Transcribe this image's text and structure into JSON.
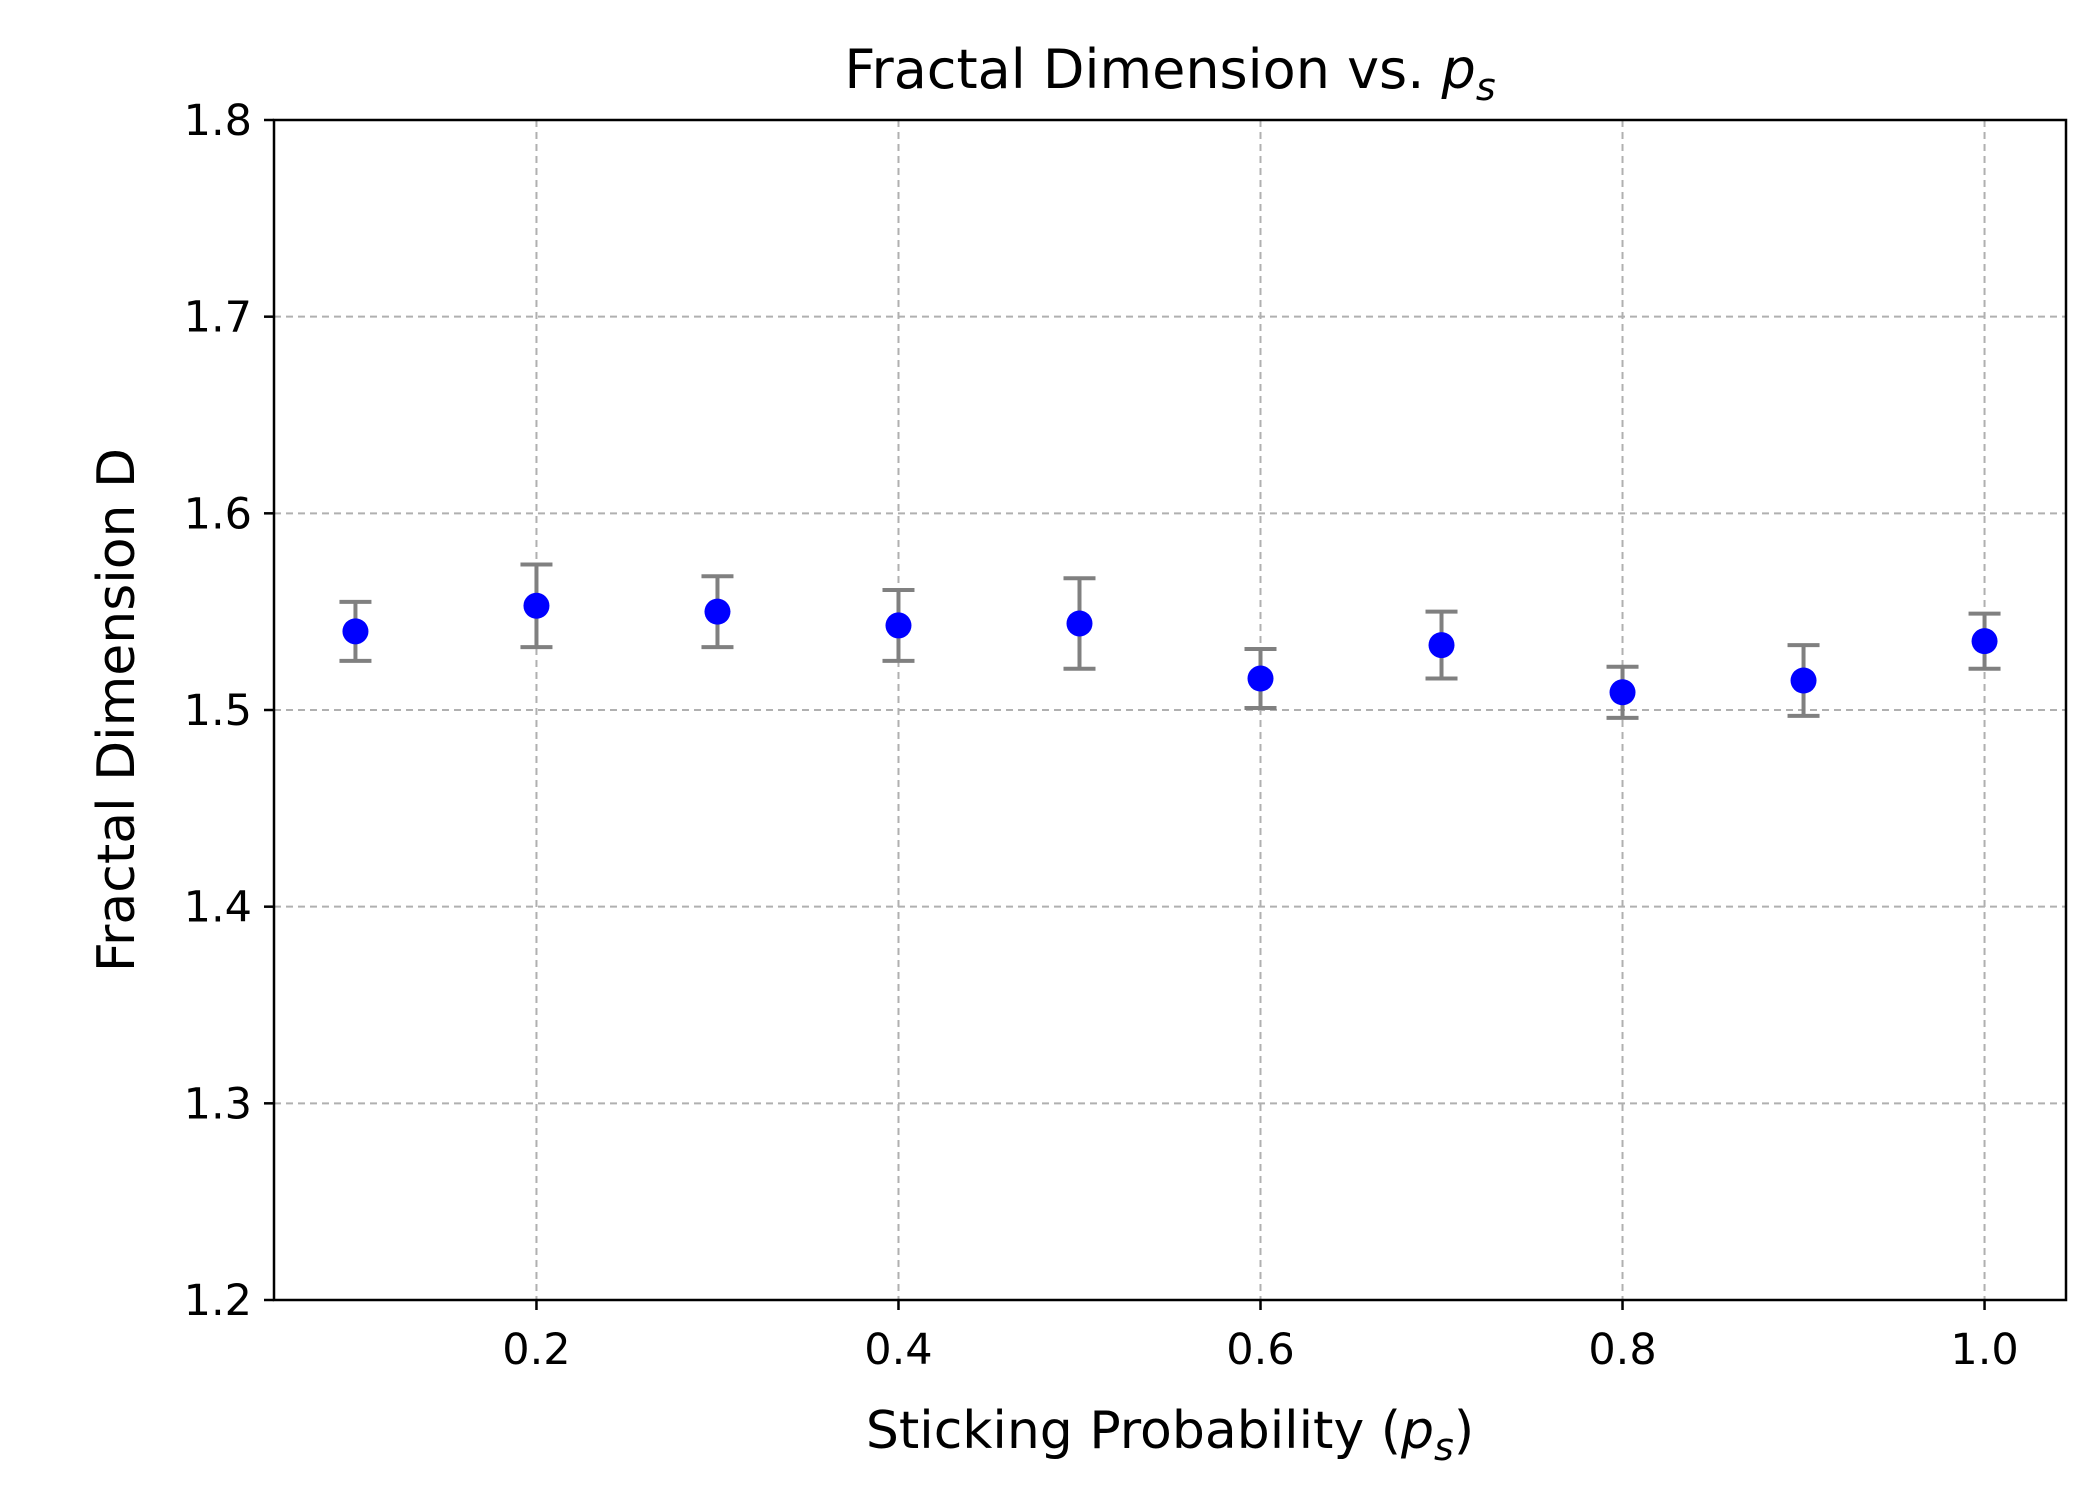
{
  "chart_data": {
    "type": "scatter",
    "title": {
      "text": "Fractal Dimension vs. ",
      "math": "p",
      "math_sub": "s"
    },
    "xlabel": {
      "text": "Sticking Probability (",
      "math": "p",
      "math_sub": "s",
      "suffix": ")"
    },
    "ylabel": "Fractal Dimension D",
    "xlim": [
      0.055,
      1.045
    ],
    "ylim": [
      1.2,
      1.8
    ],
    "x_ticks": [
      0.2,
      0.4,
      0.6,
      0.8,
      1.0
    ],
    "x_tick_labels": [
      "0.2",
      "0.4",
      "0.6",
      "0.8",
      "1.0"
    ],
    "y_ticks": [
      1.2,
      1.3,
      1.4,
      1.5,
      1.6,
      1.7,
      1.8
    ],
    "y_tick_labels": [
      "1.2",
      "1.3",
      "1.4",
      "1.5",
      "1.6",
      "1.7",
      "1.8"
    ],
    "grid": true,
    "marker_color": "#0000ff",
    "errorbar_color": "#808080",
    "series": [
      {
        "x": [
          0.1,
          0.2,
          0.3,
          0.4,
          0.5,
          0.6,
          0.7,
          0.8,
          0.9,
          1.0
        ],
        "y": [
          1.54,
          1.553,
          1.55,
          1.543,
          1.544,
          1.516,
          1.533,
          1.509,
          1.515,
          1.535
        ],
        "yerr": [
          0.015,
          0.021,
          0.018,
          0.018,
          0.023,
          0.015,
          0.017,
          0.013,
          0.018,
          0.014
        ]
      }
    ]
  }
}
